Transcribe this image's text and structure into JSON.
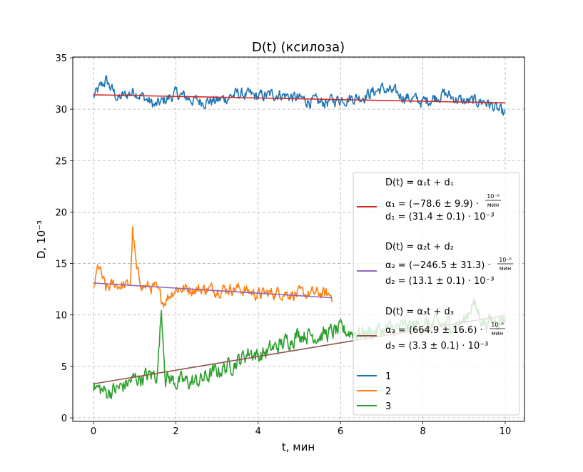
{
  "chart_data": {
    "type": "line",
    "title": "D(t) (ксилоза)",
    "xlabel": "t, мин",
    "ylabel": "D, 10⁻³",
    "xlim": [
      -0.45,
      10.5
    ],
    "ylim": [
      -0.3,
      35.4
    ],
    "xticks": [
      0,
      2,
      4,
      6,
      8,
      10
    ],
    "yticks": [
      0,
      5,
      10,
      15,
      20,
      25,
      30,
      35
    ],
    "grid": true,
    "legend_position": "lower right",
    "colors": {
      "series1": "#1f77b4",
      "series2": "#ff7f0e",
      "series3": "#2ca02c",
      "fit1": "#d62728",
      "fit2": "#9467bd",
      "fit3": "#8c564b"
    },
    "series": [
      {
        "name": "1",
        "t_end": 10.0,
        "anchors": [
          [
            0,
            31.2
          ],
          [
            0.3,
            32.8
          ],
          [
            0.6,
            31.0
          ],
          [
            1.0,
            31.8
          ],
          [
            1.5,
            30.3
          ],
          [
            2.0,
            31.5
          ],
          [
            2.5,
            30.8
          ],
          [
            3.0,
            30.8
          ],
          [
            3.5,
            31.5
          ],
          [
            4.0,
            31.2
          ],
          [
            4.5,
            31.5
          ],
          [
            5.0,
            31.0
          ],
          [
            5.5,
            30.6
          ],
          [
            6.0,
            31.0
          ],
          [
            6.5,
            31.2
          ],
          [
            7.0,
            32.0
          ],
          [
            7.5,
            31.3
          ],
          [
            8.0,
            30.7
          ],
          [
            8.5,
            31.5
          ],
          [
            9.0,
            30.7
          ],
          [
            9.5,
            30.8
          ],
          [
            10.0,
            29.4
          ]
        ],
        "noise": 0.55
      },
      {
        "name": "2",
        "t_end": 5.8,
        "anchors": [
          [
            0,
            12.5
          ],
          [
            0.12,
            14.8
          ],
          [
            0.3,
            12.5
          ],
          [
            0.5,
            13.0
          ],
          [
            0.8,
            12.8
          ],
          [
            0.9,
            13.2
          ],
          [
            0.95,
            18.3
          ],
          [
            1.05,
            14.2
          ],
          [
            1.2,
            12.8
          ],
          [
            1.5,
            12.6
          ],
          [
            1.7,
            11.3
          ],
          [
            2.0,
            12.6
          ],
          [
            2.5,
            12.5
          ],
          [
            3.0,
            12.5
          ],
          [
            3.5,
            12.6
          ],
          [
            4.0,
            12.0
          ],
          [
            4.5,
            12.2
          ],
          [
            5.0,
            12.0
          ],
          [
            5.5,
            12.1
          ],
          [
            5.8,
            11.9
          ]
        ],
        "noise": 0.55
      },
      {
        "name": "3",
        "t_end": 10.0,
        "anchors": [
          [
            0,
            3.0
          ],
          [
            0.3,
            2.5
          ],
          [
            0.6,
            2.8
          ],
          [
            1.0,
            3.8
          ],
          [
            1.3,
            4.0
          ],
          [
            1.55,
            4.3
          ],
          [
            1.65,
            10.5
          ],
          [
            1.75,
            4.0
          ],
          [
            2.0,
            3.5
          ],
          [
            2.5,
            3.5
          ],
          [
            3.0,
            4.5
          ],
          [
            3.5,
            5.5
          ],
          [
            3.8,
            6.5
          ],
          [
            4.0,
            6.0
          ],
          [
            4.5,
            7.0
          ],
          [
            5.0,
            8.2
          ],
          [
            5.5,
            8.0
          ],
          [
            6.0,
            8.5
          ],
          [
            6.5,
            8.2
          ],
          [
            7.0,
            8.5
          ],
          [
            7.5,
            8.8
          ],
          [
            8.0,
            9.0
          ],
          [
            8.5,
            9.0
          ],
          [
            9.0,
            9.3
          ],
          [
            9.2,
            11.2
          ],
          [
            9.5,
            9.2
          ],
          [
            10.0,
            9.8
          ]
        ],
        "noise": 0.75
      }
    ],
    "fits": [
      {
        "name": "fit1",
        "t_end": 10.0,
        "intercept": 31.4,
        "slope": -0.0786
      },
      {
        "name": "fit2",
        "t_end": 5.8,
        "intercept": 13.1,
        "slope": -0.2465
      },
      {
        "name": "fit3",
        "t_end": 10.0,
        "intercept": 3.3,
        "slope": 0.6649
      }
    ]
  },
  "legend": {
    "fit1": {
      "eq": "D(t) = α₁t + d₁",
      "alpha": "α₁ = (−78.6 ± 9.9) ·",
      "d": "d₁ = (31.4 ± 0.1) ·  10⁻³"
    },
    "fit2": {
      "eq": "D(t) = α₂t + d₂",
      "alpha": "α₂ = (−246.5 ± 31.3) ·",
      "d": "d₂ = (13.1 ± 0.1) ·  10⁻³"
    },
    "fit3": {
      "eq": "D(t) = α₃t + d₃",
      "alpha": "α₃ = (664.9 ± 16.6) ·",
      "d": "d₃ = (3.3 ± 0.1) ·  10⁻³"
    },
    "unit_num": "10⁻⁶",
    "unit_den": "мин",
    "series_labels": [
      "1",
      "2",
      "3"
    ]
  }
}
